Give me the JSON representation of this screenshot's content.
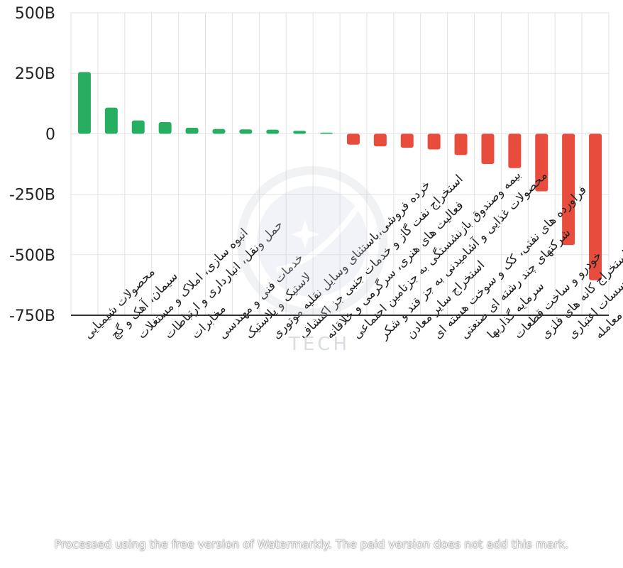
{
  "colors": {
    "positive": "#27ae60",
    "negative": "#e74c3c",
    "grid": "#e3e3e3",
    "axis": "#333333"
  },
  "watermark": {
    "text": "TECH",
    "footer": "Processed using the free version of Watermarkly. The paid version does not add this mark."
  },
  "chart_data": {
    "type": "bar",
    "title": "",
    "xlabel": "",
    "ylabel": "",
    "ylim": [
      -750,
      500
    ],
    "yticks": [
      500,
      250,
      0,
      -250,
      -500,
      -750
    ],
    "ytick_labels": [
      "500B",
      "250B",
      "0",
      "-250B",
      "-500B",
      "-750B"
    ],
    "grid": true,
    "categories": [
      "محصولات شیمیایی",
      "سیمان، آهک و گچ",
      "انبوه سازی، املاک و مستغلات",
      "حمل ونقل، انبارداری و ارتباطات",
      "مخابرات",
      "خدمات فنی و مهندسی",
      "لاستیک و پلاستیک",
      "خرده فروشی،باستثنای وسایل نقلیه موتوری",
      "استخراج نفت گاز و خدمات جنبی جز اکتشاف",
      "فعالیت های هنری، سرگرمی و خلاقانه",
      "بیمه وصندوق بازنشستگی به جزتامین اجتماعی",
      "محصولات غذایی و آشامیدنی به جز قند و شکر",
      "استخراج سایر معادن",
      "فراورده های نفتی، کک و سوخت هسته ای",
      "شرکتهای چند رشته ای صنعتی",
      "سرمایه گذاریها",
      "خودرو و ساخت قطعات",
      "استخراج کانه های فلزی",
      "بانکها و موسسات اعتباری",
      "صندوق سرمایه گذاری قابل معامله"
    ],
    "values": [
      255,
      108,
      55,
      48,
      25,
      20,
      18,
      17,
      12,
      5,
      -45,
      -52,
      -58,
      -65,
      -88,
      -125,
      -142,
      -238,
      -460,
      -605
    ]
  }
}
